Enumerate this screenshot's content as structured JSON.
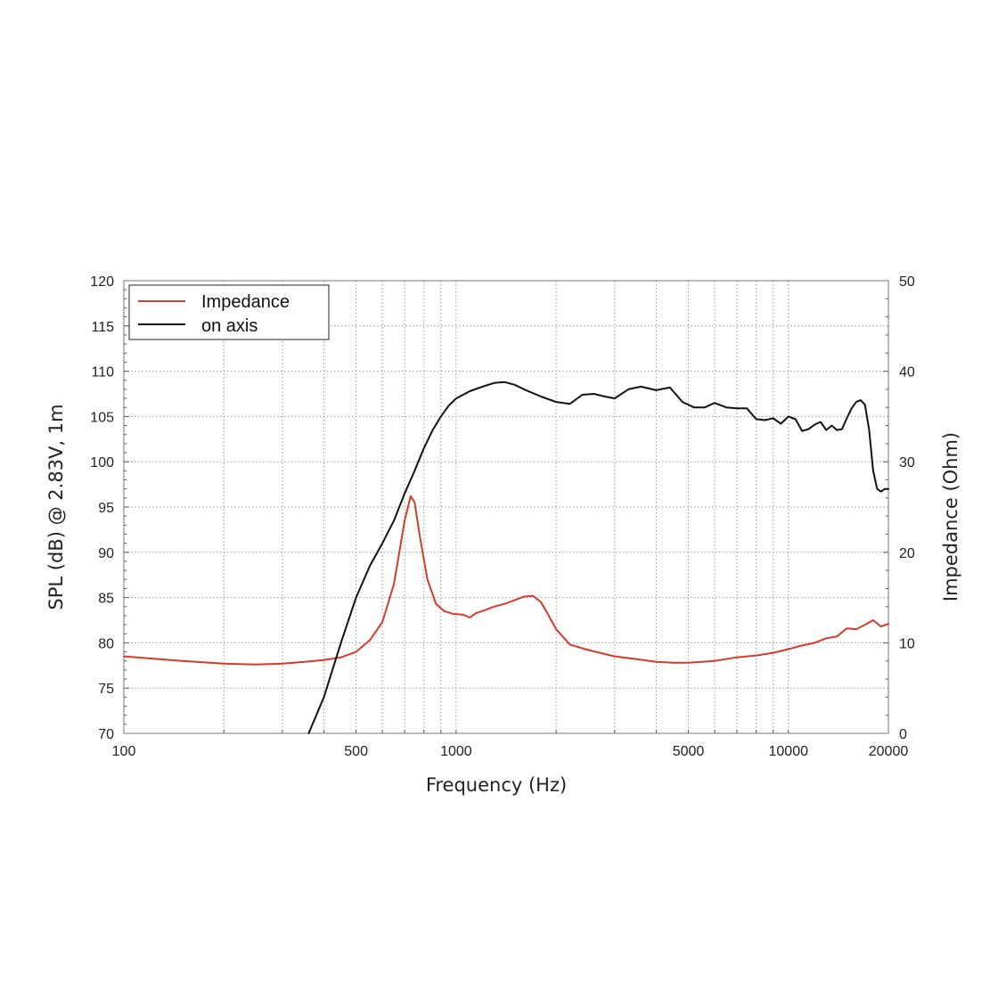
{
  "chart_data": {
    "type": "line",
    "xscale": "log",
    "xlim": [
      100,
      20000
    ],
    "xticks": [
      100,
      500,
      1000,
      5000,
      10000,
      20000
    ],
    "xtick_labels": [
      "100",
      "500",
      "1000",
      "5000",
      "10000",
      "20000"
    ],
    "xlabel": "Frequency (Hz)",
    "ylabel_left": "SPL (dB) @ 2.83V, 1m",
    "ylabel_right": "Impedance (Ohm)",
    "ylim_left": [
      70,
      120
    ],
    "ylim_right": [
      0,
      50
    ],
    "yticks_left": [
      "120",
      "115",
      "110",
      "105",
      "100",
      "95",
      "90",
      "85",
      "80",
      "75",
      "70"
    ],
    "yticks_right": [
      "50",
      "40",
      "30",
      "20",
      "10",
      "0"
    ],
    "grid": true,
    "legend_position": "top-left",
    "series": [
      {
        "name": "Impedance",
        "axis": "right",
        "color": "#d63a2a",
        "x": [
          100,
          150,
          200,
          250,
          300,
          350,
          400,
          450,
          500,
          550,
          600,
          650,
          700,
          730,
          750,
          780,
          820,
          870,
          920,
          980,
          1050,
          1100,
          1150,
          1200,
          1300,
          1400,
          1500,
          1600,
          1700,
          1800,
          1900,
          2000,
          2200,
          2500,
          3000,
          3500,
          4000,
          4500,
          5000,
          5500,
          6000,
          7000,
          8000,
          9000,
          10000,
          11000,
          12000,
          13000,
          14000,
          15000,
          16000,
          17000,
          18000,
          19000,
          20000
        ],
        "y": [
          8.5,
          8.0,
          7.7,
          7.6,
          7.7,
          7.9,
          8.1,
          8.4,
          9.0,
          10.3,
          12.3,
          16.5,
          23.5,
          26.2,
          25.5,
          21.5,
          17.0,
          14.3,
          13.5,
          13.2,
          13.1,
          12.8,
          13.3,
          13.5,
          14.0,
          14.3,
          14.7,
          15.1,
          15.2,
          14.5,
          13.0,
          11.5,
          9.8,
          9.2,
          8.5,
          8.2,
          7.9,
          7.8,
          7.8,
          7.9,
          8.0,
          8.4,
          8.6,
          8.9,
          9.3,
          9.7,
          10.0,
          10.5,
          10.7,
          11.6,
          11.5,
          12.0,
          12.5,
          11.8,
          12.1
        ]
      },
      {
        "name": "on axis",
        "axis": "left",
        "color": "#111111",
        "x": [
          360,
          400,
          450,
          500,
          550,
          600,
          650,
          700,
          750,
          800,
          850,
          900,
          950,
          1000,
          1100,
          1200,
          1300,
          1400,
          1500,
          1600,
          1800,
          2000,
          2200,
          2400,
          2600,
          2800,
          3000,
          3300,
          3600,
          4000,
          4400,
          4800,
          5200,
          5600,
          6000,
          6500,
          7000,
          7500,
          8000,
          8500,
          9000,
          9500,
          10000,
          10500,
          11000,
          11500,
          12000,
          12500,
          13000,
          13500,
          14000,
          14500,
          15000,
          15500,
          16000,
          16500,
          17000,
          17500,
          18000,
          18500,
          19000,
          19500,
          20000
        ],
        "y": [
          70,
          74,
          80,
          85,
          88.5,
          91,
          93.5,
          96.5,
          99,
          101.5,
          103.5,
          105,
          106.2,
          107,
          107.8,
          108.3,
          108.7,
          108.8,
          108.5,
          108.0,
          107.2,
          106.6,
          106.4,
          107.4,
          107.5,
          107.2,
          107.0,
          108.0,
          108.3,
          107.9,
          108.2,
          106.6,
          106.0,
          106.0,
          106.5,
          106.0,
          105.9,
          105.9,
          104.7,
          104.6,
          104.8,
          104.2,
          105.0,
          104.7,
          103.4,
          103.6,
          104.1,
          104.4,
          103.5,
          104.0,
          103.5,
          103.6,
          104.8,
          105.9,
          106.6,
          106.8,
          106.3,
          103.5,
          99.0,
          97.0,
          96.7,
          97.0,
          97.0
        ]
      }
    ]
  }
}
